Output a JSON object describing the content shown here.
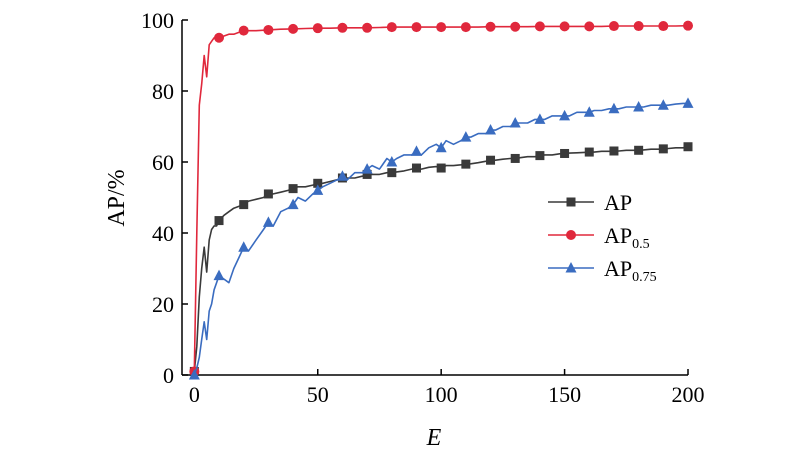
{
  "chart_data": {
    "type": "line",
    "xlabel": "E",
    "ylabel": "AP/%",
    "xlim": [
      -5,
      200
    ],
    "ylim": [
      0,
      100
    ],
    "xticks": [
      0,
      50,
      100,
      150,
      200
    ],
    "yticks": [
      0,
      20,
      40,
      60,
      80,
      100
    ],
    "grid": false,
    "legend_position": "right",
    "series": [
      {
        "name": "AP",
        "legend_main": "AP",
        "legend_sub": "",
        "color": "#3a3a3a",
        "marker": "square",
        "marker_every": 10,
        "x": [
          0,
          1,
          2,
          3,
          4,
          5,
          6,
          7,
          8,
          9,
          10,
          12,
          14,
          16,
          18,
          20,
          22,
          25,
          28,
          30,
          32,
          35,
          38,
          40,
          42,
          45,
          48,
          50,
          52,
          55,
          58,
          60,
          62,
          65,
          68,
          70,
          72,
          75,
          78,
          80,
          82,
          85,
          88,
          90,
          92,
          95,
          98,
          100,
          102,
          105,
          108,
          110,
          112,
          115,
          118,
          120,
          122,
          125,
          128,
          130,
          132,
          135,
          138,
          140,
          142,
          145,
          148,
          150,
          152,
          155,
          158,
          160,
          162,
          165,
          168,
          170,
          172,
          175,
          178,
          180,
          182,
          185,
          188,
          190,
          192,
          195,
          198,
          200
        ],
        "values": [
          1,
          8,
          22,
          30,
          36,
          29,
          38,
          41,
          42,
          42,
          43.5,
          45,
          46,
          47,
          47.5,
          48,
          49,
          49.5,
          50,
          51,
          51,
          51.5,
          52,
          52.5,
          53,
          53,
          53.5,
          54,
          54,
          54.5,
          55,
          55.5,
          55.5,
          55.5,
          56,
          56.5,
          56.5,
          56.5,
          57,
          57,
          57.2,
          57.5,
          58,
          58.3,
          58,
          58.5,
          58.7,
          58.3,
          59,
          59,
          59.2,
          59.4,
          59.5,
          59.8,
          60.2,
          60.5,
          60.5,
          60.8,
          61,
          61,
          61.2,
          61.5,
          61.5,
          61.8,
          62,
          62,
          62.3,
          62.4,
          62.5,
          62.6,
          62.7,
          62.8,
          62.8,
          63,
          63,
          63.1,
          63.1,
          63.3,
          63.3,
          63.3,
          63.4,
          63.6,
          63.6,
          63.7,
          63.8,
          64,
          64,
          64.3
        ]
      },
      {
        "name": "AP0.5",
        "legend_main": "AP",
        "legend_sub": "0.5",
        "color": "#e0283c",
        "marker": "circle",
        "marker_every": 10,
        "x": [
          0,
          1,
          2,
          3,
          4,
          5,
          6,
          7,
          8,
          9,
          10,
          12,
          14,
          16,
          18,
          20,
          25,
          30,
          35,
          40,
          45,
          50,
          55,
          60,
          65,
          70,
          75,
          80,
          85,
          90,
          95,
          100,
          105,
          110,
          115,
          120,
          125,
          130,
          135,
          140,
          145,
          150,
          155,
          160,
          165,
          170,
          175,
          180,
          185,
          190,
          195,
          200
        ],
        "values": [
          1,
          40,
          76,
          82,
          90,
          84,
          93,
          94,
          95,
          95,
          95,
          95.5,
          96,
          96,
          96.5,
          97,
          97,
          97.2,
          97.4,
          97.5,
          97.6,
          97.7,
          97.7,
          97.8,
          97.8,
          97.8,
          97.9,
          98,
          98,
          98,
          98,
          98,
          98,
          98,
          98,
          98.1,
          98.1,
          98.1,
          98.1,
          98.2,
          98.2,
          98.2,
          98.2,
          98.2,
          98.2,
          98.3,
          98.3,
          98.3,
          98.3,
          98.3,
          98.3,
          98.4
        ]
      },
      {
        "name": "AP0.75",
        "legend_main": "AP",
        "legend_sub": "0.75",
        "color": "#3a6cc0",
        "marker": "triangle",
        "marker_every": 10,
        "x": [
          0,
          1,
          2,
          3,
          4,
          5,
          6,
          7,
          8,
          9,
          10,
          12,
          14,
          16,
          18,
          20,
          22,
          25,
          28,
          30,
          32,
          35,
          38,
          40,
          42,
          45,
          48,
          50,
          52,
          55,
          58,
          60,
          62,
          65,
          68,
          70,
          72,
          75,
          78,
          80,
          82,
          85,
          88,
          90,
          92,
          95,
          98,
          100,
          102,
          105,
          108,
          110,
          112,
          115,
          118,
          120,
          122,
          125,
          128,
          130,
          132,
          135,
          138,
          140,
          142,
          145,
          148,
          150,
          152,
          155,
          158,
          160,
          162,
          165,
          168,
          170,
          172,
          175,
          178,
          180,
          182,
          185,
          188,
          190,
          192,
          195,
          198,
          200
        ],
        "values": [
          0,
          2,
          5,
          10,
          15,
          10,
          18,
          20,
          24,
          26,
          28,
          27,
          26,
          30,
          33,
          36,
          35,
          38,
          41,
          43,
          42,
          46,
          47,
          48,
          50,
          49,
          51,
          52,
          53,
          54,
          55,
          56,
          55,
          57,
          57,
          58,
          59,
          58,
          61,
          60,
          61,
          62,
          62,
          63,
          62,
          64,
          65,
          64,
          66,
          65,
          66,
          67,
          67,
          68,
          68,
          69,
          69,
          70,
          70,
          71,
          71,
          71,
          72,
          72,
          72,
          73,
          73,
          73,
          73,
          74,
          74,
          74,
          74.5,
          74.5,
          75,
          75,
          75,
          75.5,
          75.5,
          75.5,
          75.5,
          76,
          76,
          76,
          76,
          76.3,
          76.5,
          76.5
        ]
      }
    ]
  }
}
